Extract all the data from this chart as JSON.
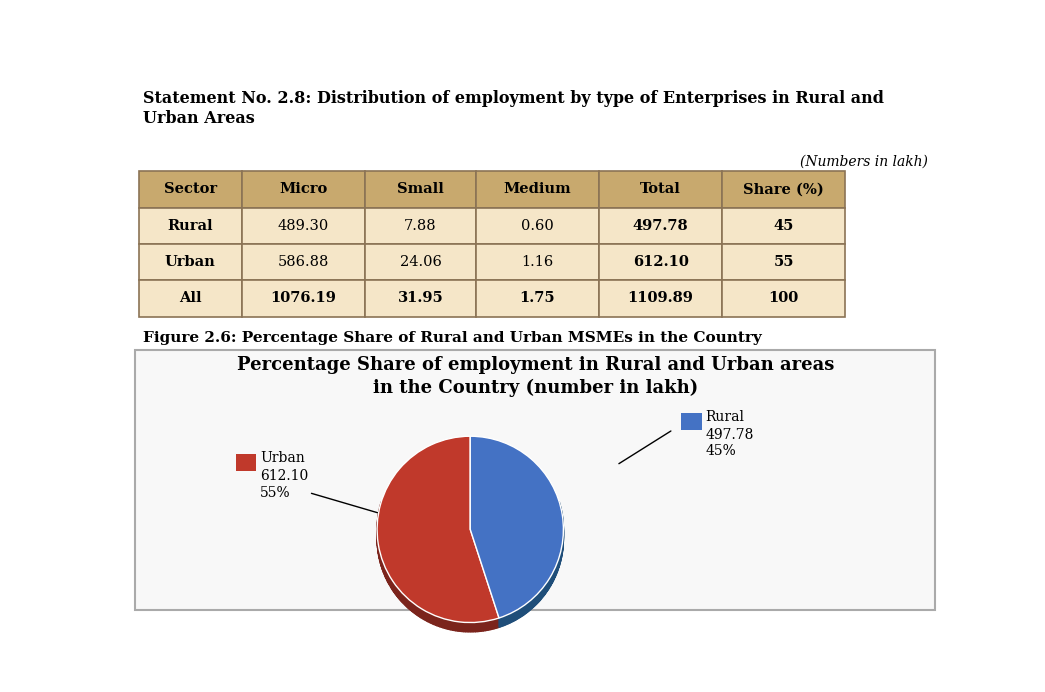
{
  "statement_title": "Statement No. 2.8: Distribution of employment by type of Enterprises in Rural and\nUrban Areas",
  "numbers_note": "(Numbers in lakh)",
  "table_headers": [
    "Sector",
    "Micro",
    "Small",
    "Medium",
    "Total",
    "Share (%)"
  ],
  "table_rows": [
    [
      "Rural",
      "489.30",
      "7.88",
      "0.60",
      "497.78",
      "45"
    ],
    [
      "Urban",
      "586.88",
      "24.06",
      "1.16",
      "612.10",
      "55"
    ],
    [
      "All",
      "1076.19",
      "31.95",
      "1.75",
      "1109.89",
      "100"
    ]
  ],
  "figure_caption": "Figure 2.6: Percentage Share of Rural and Urban MSMEs in the Country",
  "pie_title_line1": "Percentage Share of employment in Rural and Urban areas",
  "pie_title_line2": "in the Country (number in lakh)",
  "pie_values": [
    497.78,
    612.1
  ],
  "pie_labels": [
    "Rural",
    "Urban"
  ],
  "pie_percentages": [
    "45%",
    "55%"
  ],
  "pie_numbers": [
    "497.78",
    "612.10"
  ],
  "pie_colors": [
    "#4472C4",
    "#C0392B"
  ],
  "pie_shadow_colors": [
    "#1F4E79",
    "#7B241C"
  ],
  "header_bg_color": "#C8A96E",
  "row_bg_color": "#F5E6C8",
  "header_text_color": "#000000",
  "table_border_color": "#8B7355",
  "bg_color": "#FFFFFF",
  "explode": [
    0.0,
    0.0
  ]
}
